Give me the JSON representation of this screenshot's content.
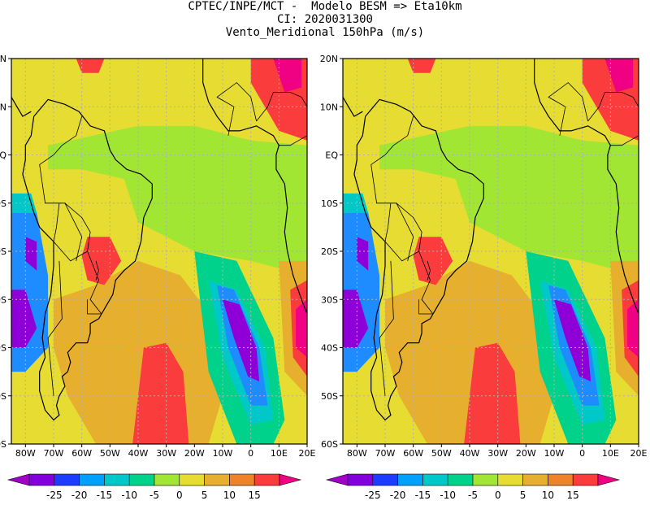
{
  "header": {
    "line1": "CPTEC/INPE/MCT -  Modelo BESM => Eta10km",
    "line2": "CI: 2020031300",
    "line3": "Vento_Meridional 150hPa (m/s)"
  },
  "axes": {
    "lon_labels": [
      "80W",
      "70W",
      "60W",
      "50W",
      "40W",
      "30W",
      "20W",
      "10W",
      "0",
      "10E",
      "20E"
    ],
    "lat_labels": [
      "20N",
      "10N",
      "EQ",
      "10S",
      "20S",
      "30S",
      "40S",
      "50S",
      "60S"
    ],
    "lon_range": [
      -85,
      20
    ],
    "lat_range": [
      -60,
      20
    ]
  },
  "panels": [
    {
      "id": "left"
    },
    {
      "id": "right"
    }
  ],
  "colorbar": {
    "labels": [
      "-25",
      "-20",
      "-15",
      "-10",
      "-5",
      "0",
      "5",
      "10",
      "15"
    ],
    "bins": [
      "#a000c8",
      "#8200dc",
      "#1e3cff",
      "#00a0ff",
      "#00c8c8",
      "#00d28c",
      "#a0e632",
      "#e6dc32",
      "#e6af2d",
      "#f08228",
      "#fa3c3c",
      "#f00082"
    ]
  },
  "colors": {
    "strong_neg": "#8f00d8",
    "neg_blue": "#1e8cff",
    "neg_cyan": "#00c8c8",
    "neg_teal": "#00d28c",
    "zero_green": "#a0e632",
    "pos_yellow": "#e6dc32",
    "pos_orange": "#e6af2d",
    "pos_red": "#fa3c3c",
    "strong_pos": "#f00082",
    "grid": "#b0b0b0",
    "coast": "#000000"
  },
  "chart_data": {
    "type": "heatmap",
    "title": "Vento_Meridional 150hPa (m/s)",
    "x_range": [
      -85,
      20
    ],
    "y_range": [
      -60,
      20
    ],
    "scale": [
      -25,
      -20,
      -15,
      -10,
      -5,
      0,
      5,
      10,
      15
    ]
  }
}
